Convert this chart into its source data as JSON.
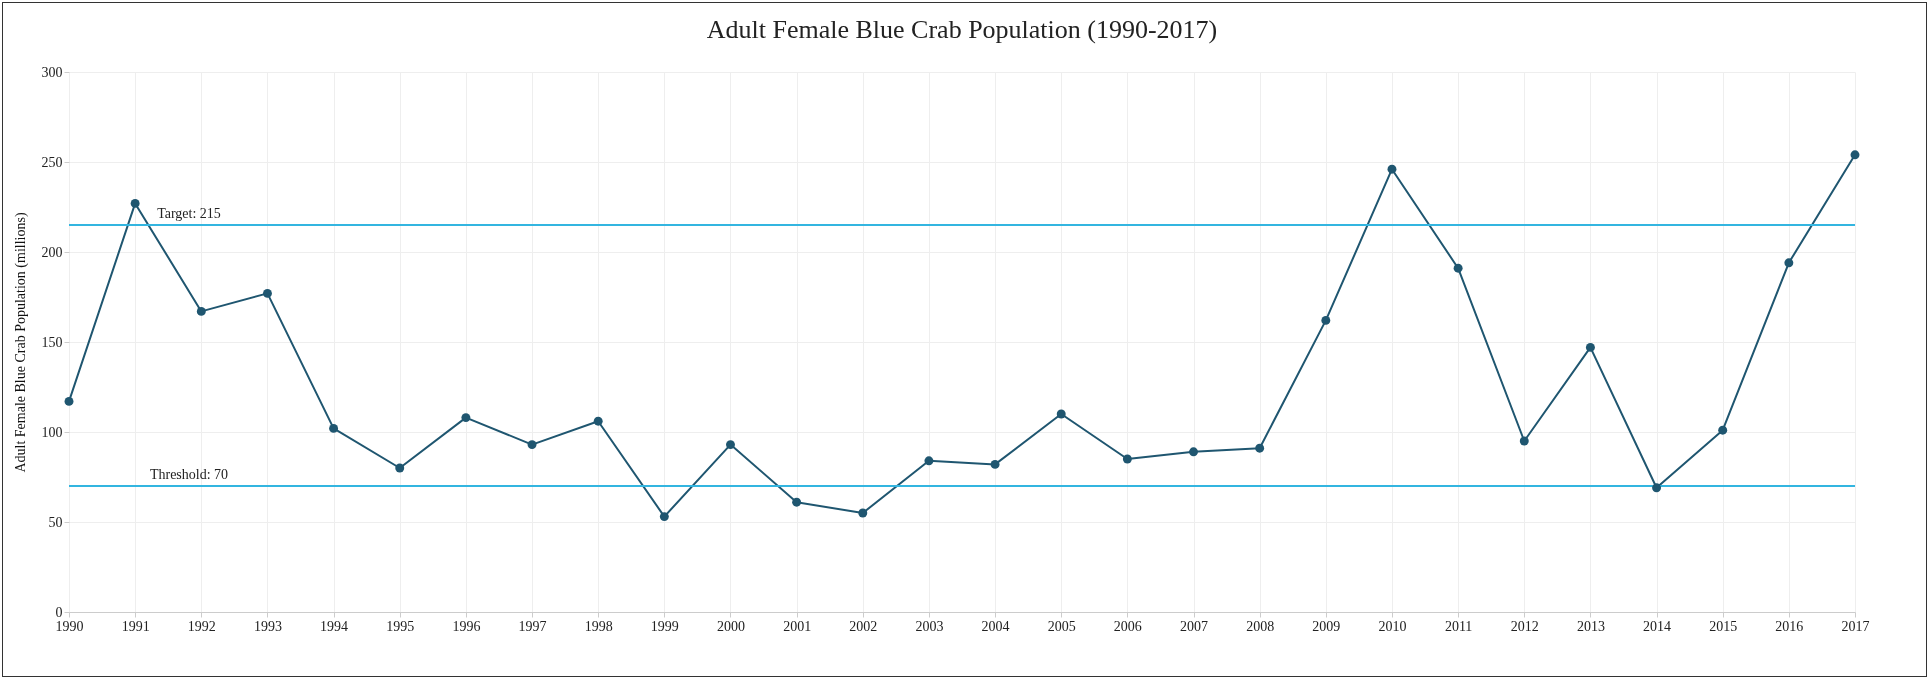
{
  "chart_data": {
    "type": "line",
    "title": "Adult Female Blue Crab Population (1990-2017)",
    "ylabel": "Adult Female Blue Crab Population (millions)",
    "x": [
      1990,
      1991,
      1992,
      1993,
      1994,
      1995,
      1996,
      1997,
      1998,
      1999,
      2000,
      2001,
      2002,
      2003,
      2004,
      2005,
      2006,
      2007,
      2008,
      2009,
      2010,
      2011,
      2012,
      2013,
      2014,
      2015,
      2016,
      2017
    ],
    "series": [
      {
        "color": "#1f5670",
        "values": [
          117,
          227,
          167,
          177,
          102,
          80,
          108,
          93,
          106,
          53,
          93,
          61,
          55,
          84,
          82,
          110,
          85,
          89,
          91,
          162,
          246,
          191,
          95,
          147,
          69,
          101,
          194,
          254
        ]
      }
    ],
    "xlim": [
      1990,
      2017
    ],
    "xticks": [
      1990,
      1991,
      1992,
      1993,
      1994,
      1995,
      1996,
      1997,
      1998,
      1999,
      2000,
      2001,
      2002,
      2003,
      2004,
      2005,
      2006,
      2007,
      2008,
      2009,
      2010,
      2011,
      2012,
      2013,
      2014,
      2015,
      2016,
      2017
    ],
    "ylim": [
      0,
      300
    ],
    "yticks": [
      0,
      50,
      100,
      150,
      200,
      250,
      300
    ],
    "ref_lines": [
      {
        "axis": "y",
        "value": 215,
        "label": "Target: 215",
        "color": "#33b5e0"
      },
      {
        "axis": "y",
        "value": 70,
        "label": "Threshold: 70",
        "color": "#33b5e0"
      }
    ],
    "grid": true,
    "marker": "circle",
    "line_style": "solid"
  }
}
